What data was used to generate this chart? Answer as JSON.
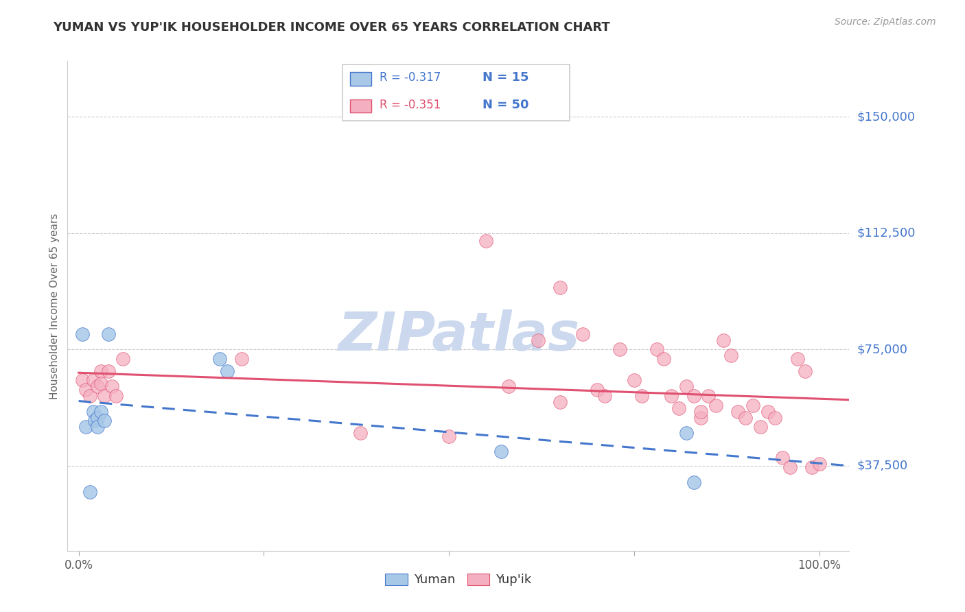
{
  "title": "YUMAN VS YUP'IK HOUSEHOLDER INCOME OVER 65 YEARS CORRELATION CHART",
  "source": "Source: ZipAtlas.com",
  "ylabel": "Householder Income Over 65 years",
  "legend_entries": [
    {
      "label": "Yuman",
      "R": "-0.317",
      "N": "15",
      "color": "#a8c8e8"
    },
    {
      "label": "Yup'ik",
      "R": "-0.351",
      "N": "50",
      "color": "#f4afc0"
    }
  ],
  "ytick_labels": [
    "$37,500",
    "$75,000",
    "$112,500",
    "$150,000"
  ],
  "ytick_values": [
    37500,
    75000,
    112500,
    150000
  ],
  "ymin": 10000,
  "ymax": 168000,
  "xmin": -0.015,
  "xmax": 1.04,
  "background_color": "#ffffff",
  "grid_color": "#cccccc",
  "title_color": "#333333",
  "axis_label_color": "#666666",
  "ytick_color": "#4477cc",
  "watermark_text": "ZIPatlas",
  "watermark_color": "#ccd8ee",
  "yuman_x": [
    0.005,
    0.01,
    0.015,
    0.02,
    0.022,
    0.025,
    0.025,
    0.03,
    0.035,
    0.04,
    0.19,
    0.2,
    0.57,
    0.82,
    0.83
  ],
  "yuman_y": [
    80000,
    50000,
    29000,
    55000,
    52000,
    53000,
    50000,
    55000,
    52000,
    80000,
    72000,
    68000,
    42000,
    48000,
    32000
  ],
  "yupik_x": [
    0.005,
    0.01,
    0.015,
    0.02,
    0.025,
    0.03,
    0.03,
    0.035,
    0.04,
    0.045,
    0.05,
    0.06,
    0.22,
    0.38,
    0.5,
    0.55,
    0.58,
    0.62,
    0.65,
    0.65,
    0.68,
    0.7,
    0.71,
    0.73,
    0.75,
    0.76,
    0.78,
    0.79,
    0.8,
    0.81,
    0.82,
    0.83,
    0.84,
    0.84,
    0.85,
    0.86,
    0.87,
    0.88,
    0.89,
    0.9,
    0.91,
    0.92,
    0.93,
    0.94,
    0.95,
    0.96,
    0.97,
    0.98,
    0.99,
    1.0
  ],
  "yupik_y": [
    65000,
    62000,
    60000,
    65000,
    63000,
    68000,
    64000,
    60000,
    68000,
    63000,
    60000,
    72000,
    72000,
    48000,
    47000,
    110000,
    63000,
    78000,
    95000,
    58000,
    80000,
    62000,
    60000,
    75000,
    65000,
    60000,
    75000,
    72000,
    60000,
    56000,
    63000,
    60000,
    53000,
    55000,
    60000,
    57000,
    78000,
    73000,
    55000,
    53000,
    57000,
    50000,
    55000,
    53000,
    40000,
    37000,
    72000,
    68000,
    37000,
    38000
  ],
  "yuman_line_color": "#4477cc",
  "yupik_line_color": "#e05070",
  "yuman_line_start_x": 0.0,
  "yuman_line_end_x": 1.04,
  "yupik_line_start_x": 0.0,
  "yupik_line_end_x": 1.04
}
